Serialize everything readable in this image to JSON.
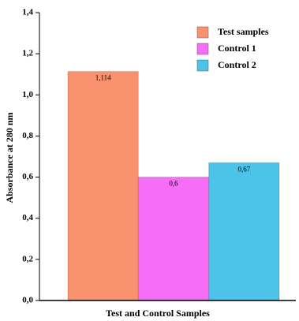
{
  "chart_data": {
    "type": "bar",
    "x_label": "Test and Control Samples",
    "y_label": "Absorbance at 280 nm",
    "categories": [
      null
    ],
    "series": [
      {
        "name": "Test samples",
        "color": "#f9936f",
        "values": [
          1.114
        ],
        "value_labels": [
          "1,114"
        ]
      },
      {
        "name": "Control 1",
        "color": "#f56ef5",
        "values": [
          0.6
        ],
        "value_labels": [
          "0,6"
        ]
      },
      {
        "name": "Control 2",
        "color": "#4cc4ea",
        "values": [
          0.67
        ],
        "value_labels": [
          "0,67"
        ]
      }
    ],
    "ylim": [
      0,
      1.4
    ],
    "yticks": [
      {
        "value": 0,
        "label": "0,0"
      },
      {
        "value": 0.2,
        "label": "0,2"
      },
      {
        "value": 0.4,
        "label": "0,4"
      },
      {
        "value": 0.6,
        "label": "0,6"
      },
      {
        "value": 0.8,
        "label": "0,8"
      },
      {
        "value": 1.0,
        "label": "1,0"
      },
      {
        "value": 1.2,
        "label": "1,2"
      },
      {
        "value": 1.4,
        "label": "1,4"
      }
    ],
    "legend": "upper right"
  }
}
